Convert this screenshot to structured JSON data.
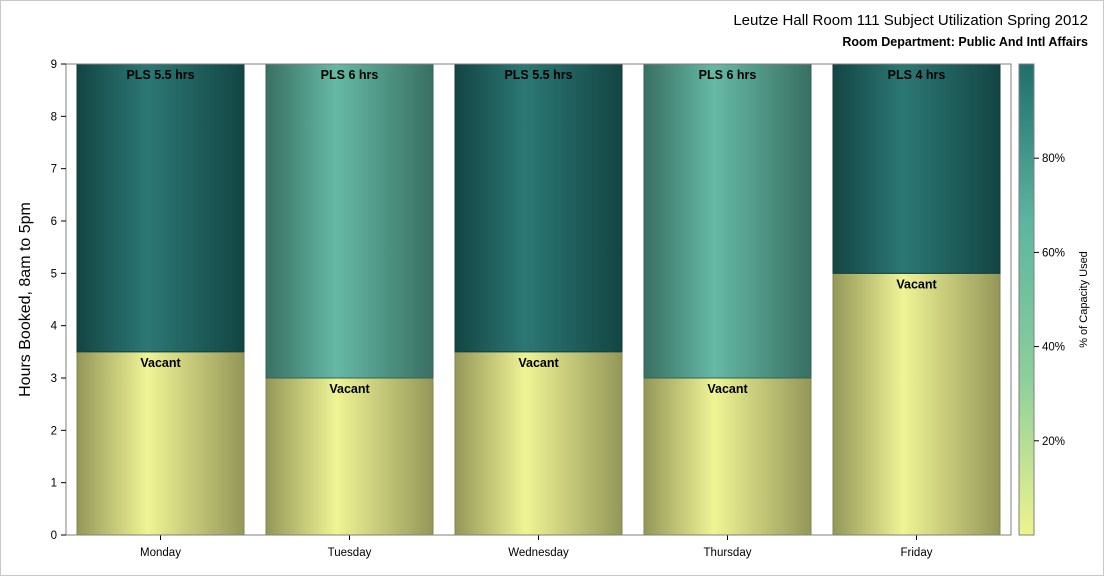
{
  "header": {
    "title": "Leutze Hall Room 111 Subject Utilization Spring 2012",
    "subtitle": "Room Department:  Public And Intl Affairs"
  },
  "chart_data": {
    "type": "bar",
    "stacked": true,
    "title": "Leutze Hall Room 111 Subject Utilization Spring 2012",
    "subtitle": "Room Department:  Public And Intl Affairs",
    "xlabel": "",
    "ylabel": "Hours Booked, 8am to 5pm",
    "ylim": [
      0,
      9
    ],
    "yticks": [
      0,
      1,
      2,
      3,
      4,
      5,
      6,
      7,
      8,
      9
    ],
    "categories": [
      "Monday",
      "Tuesday",
      "Wednesday",
      "Thursday",
      "Friday"
    ],
    "series": [
      {
        "name": "Vacant",
        "values": [
          3.5,
          3,
          3.5,
          3,
          5
        ],
        "labels": [
          "Vacant",
          "Vacant",
          "Vacant",
          "Vacant",
          "Vacant"
        ]
      },
      {
        "name": "PLS",
        "values": [
          5.5,
          6,
          5.5,
          6,
          4
        ],
        "labels": [
          "PLS 5.5 hrs",
          "PLS 6 hrs",
          "PLS 5.5 hrs",
          "PLS 6 hrs",
          "PLS 4 hrs"
        ]
      }
    ],
    "capacity_used_pct": {
      "Vacant": [
        0,
        0,
        0,
        0,
        0
      ],
      "PLS": [
        100,
        67,
        100,
        67,
        100
      ]
    },
    "colorbar": {
      "title": "% of Capacity Used",
      "ticks": [
        "20%",
        "40%",
        "60%",
        "80%"
      ],
      "tick_values": [
        20,
        40,
        60,
        80
      ],
      "range": [
        0,
        100
      ],
      "colors": [
        "#eef38e",
        "#8ccf9c",
        "#5cb5a0",
        "#1f6f6c"
      ]
    },
    "grid": false,
    "legend": "right"
  }
}
